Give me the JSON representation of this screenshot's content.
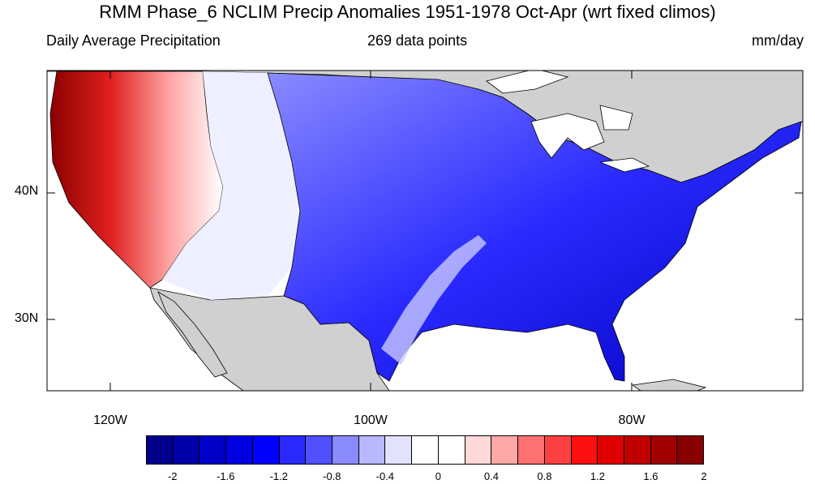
{
  "header": {
    "title": "RMM Phase_6 NCLIM Precip Anomalies 1951-1978 Oct-Apr (wrt fixed climos)",
    "left_subtitle": "Daily Average Precipitation",
    "center_subtitle": "269 data points",
    "right_subtitle": "mm/day"
  },
  "map": {
    "y_ticks": [
      "40N",
      "30N"
    ],
    "x_ticks": [
      "120W",
      "100W",
      "80W"
    ],
    "ocean_color": "#ffffff",
    "land_outside_color": "#d0d0d0"
  },
  "colorbar": {
    "colors": [
      "#00008b",
      "#0000a8",
      "#0000c8",
      "#0000e0",
      "#0000ff",
      "#2a2aff",
      "#5050ff",
      "#8a8aff",
      "#b8b8ff",
      "#e2e2ff",
      "#ffffff",
      "#ffffff",
      "#ffd8d8",
      "#ffa8a8",
      "#ff7070",
      "#ff4040",
      "#ff1010",
      "#e00000",
      "#c00000",
      "#a00000",
      "#880000"
    ],
    "labels": [
      "-2",
      "-1.6",
      "-1.2",
      "-0.8",
      "-0.4",
      "0",
      "0.4",
      "0.8",
      "1.2",
      "1.6",
      "2"
    ]
  }
}
